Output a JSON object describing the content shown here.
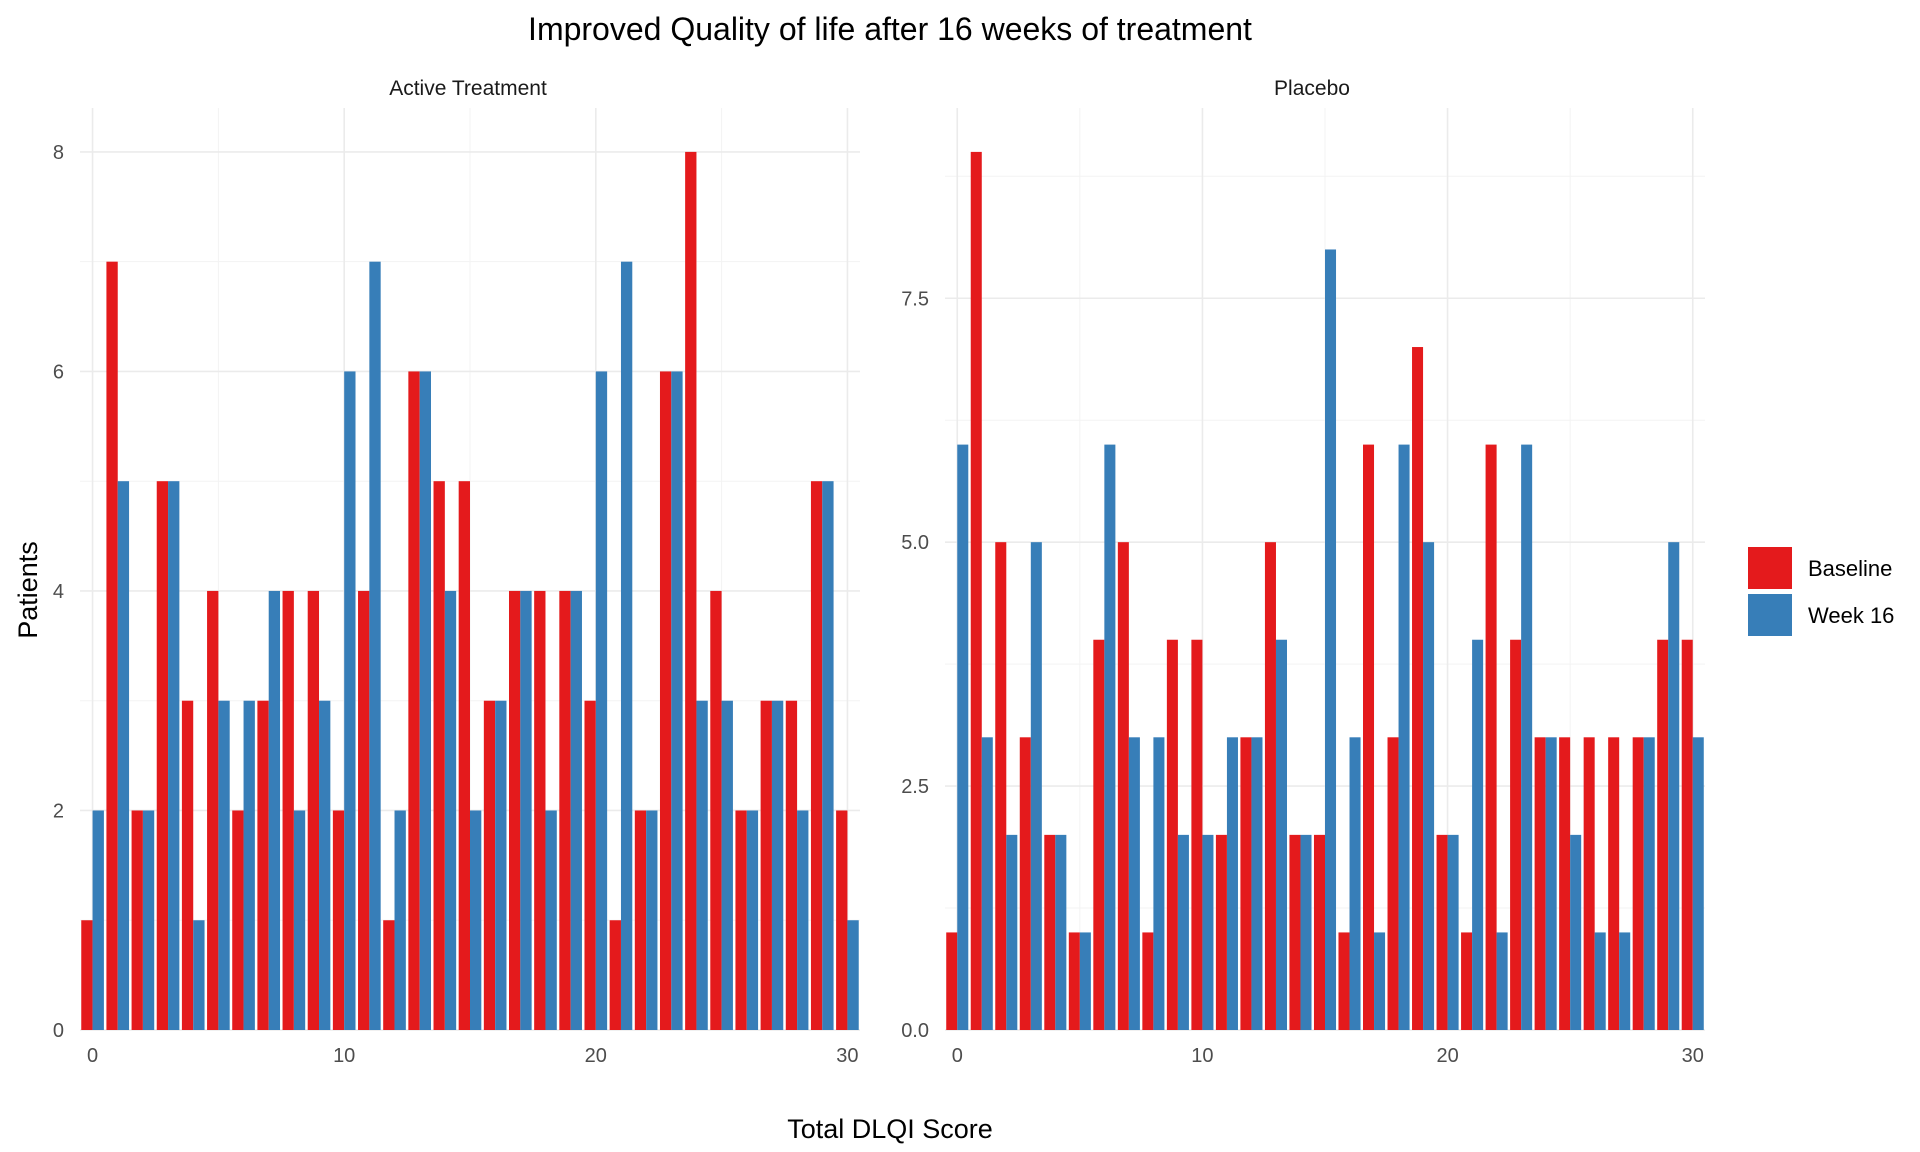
{
  "chart_data": {
    "type": "bar",
    "title": "Improved Quality of life after 16 weeks of treatment",
    "xlabel": "Total DLQI Score",
    "ylabel": "Patients",
    "legend": {
      "placement": "right",
      "entries": [
        {
          "name": "Baseline",
          "color": "#E41A1C"
        },
        {
          "name": "Week 16",
          "color": "#377EB8"
        }
      ]
    },
    "grid": true,
    "x_range": [
      -0.5,
      30.5
    ],
    "panels": [
      {
        "name": "Active Treatment",
        "ylim": [
          0,
          8.4
        ],
        "yticks": [
          0,
          2,
          4,
          6,
          8
        ],
        "ytick_labels": [
          "0",
          "2",
          "4",
          "6",
          "8"
        ],
        "xticks": [
          0,
          10,
          20,
          30
        ],
        "xtick_labels": [
          "0",
          "10",
          "20",
          "30"
        ],
        "x": [
          0,
          1,
          2,
          3,
          4,
          5,
          6,
          7,
          8,
          9,
          10,
          11,
          12,
          13,
          14,
          15,
          16,
          17,
          18,
          19,
          20,
          21,
          22,
          23,
          24,
          25,
          26,
          27,
          28,
          29,
          30
        ],
        "series": [
          {
            "name": "Baseline",
            "values": [
              1,
              7,
              2,
              5,
              3,
              4,
              2,
              3,
              4,
              4,
              2,
              4,
              1,
              6,
              5,
              5,
              3,
              4,
              4,
              4,
              3,
              1,
              2,
              6,
              8,
              4,
              2,
              3,
              3,
              5,
              2
            ]
          },
          {
            "name": "Week 16",
            "values": [
              2,
              5,
              2,
              5,
              1,
              3,
              3,
              4,
              2,
              3,
              6,
              7,
              2,
              6,
              4,
              2,
              3,
              4,
              2,
              4,
              6,
              7,
              2,
              6,
              3,
              3,
              2,
              3,
              2,
              5,
              1
            ]
          }
        ]
      },
      {
        "name": "Placebo",
        "ylim": [
          0,
          9.45
        ],
        "yticks": [
          0,
          2.5,
          5,
          7.5
        ],
        "ytick_labels": [
          "0.0",
          "2.5",
          "5.0",
          "7.5"
        ],
        "xticks": [
          0,
          10,
          20,
          30
        ],
        "xtick_labels": [
          "0",
          "10",
          "20",
          "30"
        ],
        "x": [
          0,
          1,
          2,
          3,
          4,
          5,
          6,
          7,
          8,
          9,
          10,
          11,
          12,
          13,
          14,
          15,
          16,
          17,
          18,
          19,
          20,
          21,
          22,
          23,
          24,
          25,
          26,
          27,
          28,
          29,
          30
        ],
        "series": [
          {
            "name": "Baseline",
            "values": [
              1,
              9,
              5,
              3,
              2,
              1,
              4,
              5,
              1,
              4,
              4,
              2,
              3,
              5,
              2,
              2,
              1,
              6,
              3,
              7,
              2,
              1,
              6,
              4,
              3,
              3,
              3,
              3,
              3,
              4,
              4
            ]
          },
          {
            "name": "Week 16",
            "values": [
              6,
              3,
              2,
              5,
              2,
              1,
              6,
              3,
              3,
              2,
              2,
              3,
              3,
              4,
              2,
              8,
              3,
              1,
              6,
              5,
              2,
              4,
              1,
              6,
              3,
              2,
              1,
              1,
              3,
              5,
              3
            ]
          }
        ]
      }
    ]
  }
}
